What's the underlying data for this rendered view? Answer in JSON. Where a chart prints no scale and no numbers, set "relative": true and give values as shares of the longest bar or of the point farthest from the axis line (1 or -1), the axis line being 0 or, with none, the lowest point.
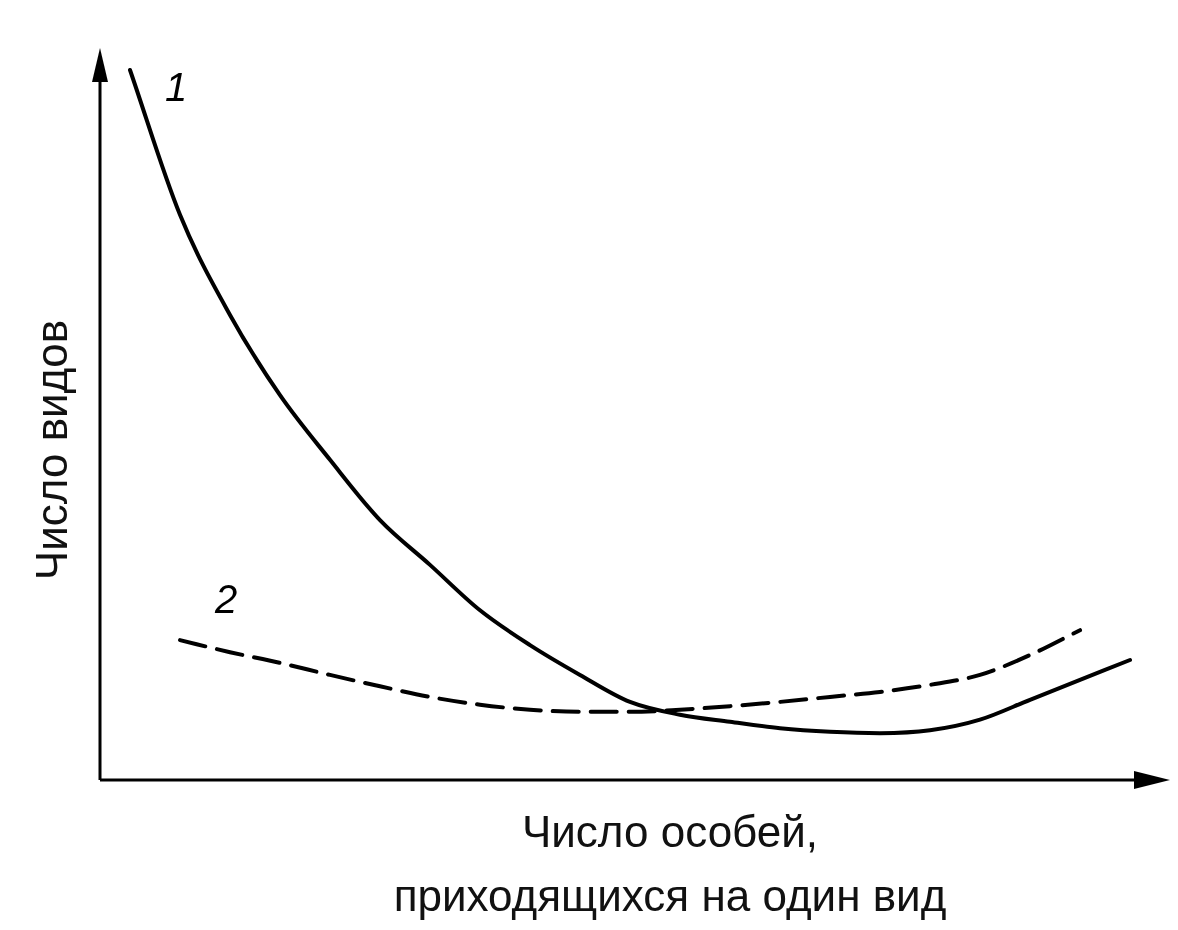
{
  "chart_data": {
    "type": "line",
    "relative": true,
    "xlabel": "Число особей,\nприходящихся на один вид",
    "ylabel": "Число видов",
    "categories": [
      null,
      null,
      null,
      null,
      null,
      null,
      null,
      null,
      null,
      null,
      null,
      null,
      null,
      null,
      null,
      null,
      null,
      null,
      null,
      null,
      null
    ],
    "marker": "none",
    "series": [
      {
        "name": "1",
        "color": "#000000",
        "line_style": "solid",
        "values": [
          1.0,
          0.796,
          0.655,
          0.542,
          0.451,
          0.366,
          0.303,
          0.239,
          0.19,
          0.148,
          0.11,
          0.092,
          0.082,
          0.073,
          0.068,
          0.066,
          0.07,
          0.085,
          0.113,
          0.141,
          0.169
        ]
      },
      {
        "name": "2",
        "color": "#000000",
        "line_style": "dashed",
        "values": [
          null,
          0.197,
          0.18,
          0.165,
          0.148,
          0.132,
          0.117,
          0.106,
          0.099,
          0.096,
          0.096,
          0.099,
          0.104,
          0.11,
          0.117,
          0.124,
          0.134,
          0.148,
          0.176,
          0.211,
          null
        ]
      }
    ]
  }
}
